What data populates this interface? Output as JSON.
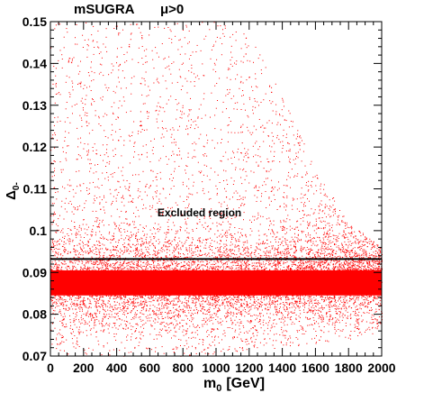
{
  "chart_data": {
    "type": "scatter",
    "title": "mSUGRA",
    "title_sign": "μ>0",
    "xlabel_base": "m",
    "xlabel_sub": "0",
    "xlabel_unit": "[GeV]",
    "ylabel_base": "Δ",
    "ylabel_sub": "0-",
    "xlim": [
      0,
      2000
    ],
    "ylim": [
      0.07,
      0.15
    ],
    "xticks": [
      0,
      200,
      400,
      600,
      800,
      1000,
      1200,
      1400,
      1600,
      1800,
      2000
    ],
    "yticks": [
      0.07,
      0.08,
      0.09,
      0.1,
      0.11,
      0.12,
      0.13,
      0.14,
      0.15
    ],
    "ytick_labels": [
      "0.07",
      "0.08",
      "0.09",
      "0.1",
      "0.11",
      "0.12",
      "0.13",
      "0.14",
      "0.15"
    ],
    "point_color": "#ff0000",
    "line_color": "#000000",
    "grid": false,
    "reference_line_y": 0.0932,
    "annotation": "Excluded region",
    "annotation_pos": [
      900,
      0.1034
    ],
    "density_model": {
      "core_band": [
        0.0845,
        0.0905
      ],
      "upper_envelope": [
        [
          0,
          0.15
        ],
        [
          1000,
          0.15
        ],
        [
          1200,
          0.147
        ],
        [
          1400,
          0.132
        ],
        [
          1600,
          0.115
        ],
        [
          1800,
          0.102
        ],
        [
          2000,
          0.096
        ]
      ],
      "lower_envelope": [
        [
          0,
          0.07
        ],
        [
          800,
          0.07
        ],
        [
          1400,
          0.072
        ],
        [
          1800,
          0.074
        ],
        [
          2000,
          0.076
        ]
      ]
    }
  }
}
